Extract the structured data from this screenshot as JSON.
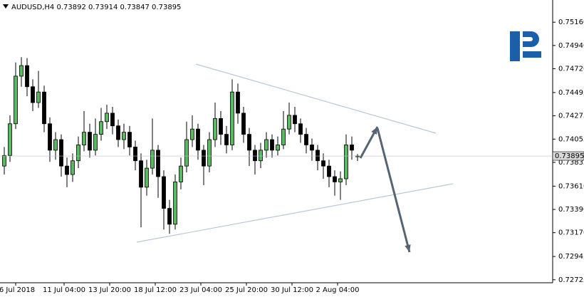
{
  "chart_data": {
    "type": "candlestick",
    "title": "AUDUSD,H4  0.73892 0.73914 0.73847 0.73895",
    "up_color": "#5cb85c",
    "down_color": "#000000",
    "ylim": [
      0.727,
      0.7537
    ],
    "yticks": [
      {
        "value": 0.7516,
        "label": "0.75160"
      },
      {
        "value": 0.7494,
        "label": "0.74940"
      },
      {
        "value": 0.7472,
        "label": "0.74720"
      },
      {
        "value": 0.74495,
        "label": "0.74495"
      },
      {
        "value": 0.74275,
        "label": "0.74275"
      },
      {
        "value": 0.74055,
        "label": "0.74055"
      },
      {
        "value": 0.73835,
        "label": "0.73835"
      },
      {
        "value": 0.7361,
        "label": "0.73610"
      },
      {
        "value": 0.7339,
        "label": "0.73390"
      },
      {
        "value": 0.7317,
        "label": "0.73170"
      },
      {
        "value": 0.72945,
        "label": "0.72945"
      },
      {
        "value": 0.72725,
        "label": "0.72725"
      }
    ],
    "xticks": [
      {
        "value": 2,
        "label": "6 Jul 2018"
      },
      {
        "value": 10.5,
        "label": "11 Jul 04:00"
      },
      {
        "value": 18.5,
        "label": "13 Jul 20:00"
      },
      {
        "value": 26.5,
        "label": "18 Jul 12:00"
      },
      {
        "value": 34.5,
        "label": "23 Jul 04:00"
      },
      {
        "value": 42.5,
        "label": "25 Jul 20:00"
      },
      {
        "value": 50.5,
        "label": "30 Jul 12:00"
      },
      {
        "value": 58.5,
        "label": "2 Aug 04:00"
      }
    ],
    "last_price": {
      "value": 0.73895,
      "label": "0.73895"
    },
    "open": [
      0.738,
      0.739,
      0.742,
      0.7465,
      0.7475,
      0.7455,
      0.744,
      0.745,
      0.742,
      0.7395,
      0.7405,
      0.738,
      0.7372,
      0.7385,
      0.74,
      0.7412,
      0.7395,
      0.741,
      0.7422,
      0.743,
      0.7418,
      0.7405,
      0.7412,
      0.7398,
      0.7385,
      0.736,
      0.7378,
      0.7395,
      0.737,
      0.734,
      0.7325,
      0.7365,
      0.738,
      0.7405,
      0.7415,
      0.7395,
      0.738,
      0.7405,
      0.7425,
      0.741,
      0.74,
      0.745,
      0.743,
      0.741,
      0.7395,
      0.7385,
      0.7395,
      0.7405,
      0.7395,
      0.74,
      0.7415,
      0.7428,
      0.742,
      0.741,
      0.74,
      0.7395,
      0.7385,
      0.738,
      0.737,
      0.7365,
      0.7368,
      0.74,
      0.73892
    ],
    "high": [
      0.7398,
      0.7428,
      0.7478,
      0.7483,
      0.7482,
      0.7462,
      0.747,
      0.7456,
      0.7426,
      0.7412,
      0.741,
      0.7388,
      0.7392,
      0.7408,
      0.7432,
      0.742,
      0.7425,
      0.7435,
      0.7438,
      0.7436,
      0.7424,
      0.742,
      0.7418,
      0.7404,
      0.7392,
      0.7386,
      0.7425,
      0.74,
      0.7376,
      0.7348,
      0.7372,
      0.7388,
      0.7422,
      0.7428,
      0.742,
      0.74,
      0.7412,
      0.744,
      0.7432,
      0.7418,
      0.7462,
      0.7458,
      0.7436,
      0.7416,
      0.74,
      0.7402,
      0.7412,
      0.741,
      0.7408,
      0.7432,
      0.744,
      0.7436,
      0.7425,
      0.7416,
      0.7406,
      0.74,
      0.7392,
      0.7386,
      0.7376,
      0.7375,
      0.741,
      0.7408,
      0.73914
    ],
    "low": [
      0.7372,
      0.7384,
      0.7415,
      0.7455,
      0.7446,
      0.7432,
      0.7435,
      0.7412,
      0.7384,
      0.7386,
      0.737,
      0.736,
      0.7365,
      0.7378,
      0.7394,
      0.7388,
      0.739,
      0.7404,
      0.7415,
      0.741,
      0.7398,
      0.7396,
      0.739,
      0.7376,
      0.7322,
      0.7352,
      0.7372,
      0.735,
      0.732,
      0.7316,
      0.732,
      0.7358,
      0.7374,
      0.7398,
      0.7386,
      0.7362,
      0.7374,
      0.7398,
      0.74,
      0.7392,
      0.7395,
      0.742,
      0.7402,
      0.738,
      0.7372,
      0.7378,
      0.7388,
      0.7388,
      0.739,
      0.7396,
      0.741,
      0.7412,
      0.7402,
      0.7392,
      0.7385,
      0.7376,
      0.7368,
      0.736,
      0.7352,
      0.7348,
      0.7362,
      0.7386,
      0.73847
    ],
    "close": [
      0.739,
      0.742,
      0.7465,
      0.7475,
      0.7455,
      0.744,
      0.745,
      0.742,
      0.7395,
      0.7405,
      0.738,
      0.7372,
      0.7385,
      0.74,
      0.7412,
      0.7395,
      0.741,
      0.7422,
      0.743,
      0.7418,
      0.7405,
      0.7412,
      0.7398,
      0.7385,
      0.736,
      0.7378,
      0.7395,
      0.737,
      0.734,
      0.7325,
      0.7365,
      0.738,
      0.7405,
      0.7415,
      0.7395,
      0.738,
      0.7405,
      0.7425,
      0.741,
      0.74,
      0.745,
      0.743,
      0.741,
      0.7395,
      0.7385,
      0.7395,
      0.7405,
      0.7395,
      0.74,
      0.7415,
      0.7428,
      0.742,
      0.741,
      0.74,
      0.7395,
      0.7385,
      0.738,
      0.737,
      0.7365,
      0.7368,
      0.74,
      0.7395,
      0.73895
    ]
  }
}
